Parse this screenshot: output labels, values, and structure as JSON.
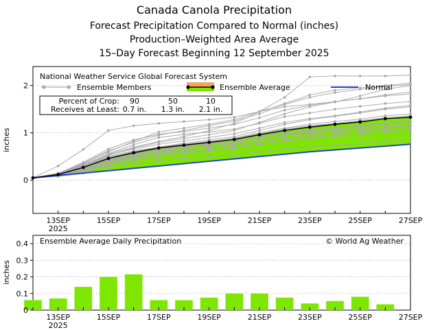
{
  "header": {
    "title": "Canada Canola Precipitation",
    "subtitle1": "Forecast Precipitation Compared to Normal (inches)",
    "subtitle2": "Production–Weighted Area Average",
    "subtitle3": "15–Day Forecast Beginning 12 September 2025"
  },
  "colors": {
    "ensemble_member": "#aaaaaa",
    "ensemble_average_fill": "#7ee600",
    "ensemble_average_line": "#000000",
    "ensemble_average_legend_band": "#f5a35a",
    "normal": "#2040d0",
    "bar": "#7ee600"
  },
  "chart_data": [
    {
      "type": "line",
      "name": "cumulative",
      "source": "National Weather Service Global Forecast System",
      "ylabel": "inches",
      "ylim": [
        -0.7,
        2.4
      ],
      "yticks": [
        0,
        1,
        2
      ],
      "x": [
        12,
        13,
        14,
        15,
        16,
        17,
        18,
        19,
        20,
        21,
        22,
        23,
        24,
        25,
        26,
        27
      ],
      "xlim": [
        12,
        27
      ],
      "xticks": [
        {
          "x": 13,
          "label": "13SEP",
          "sub": "2025"
        },
        {
          "x": 15,
          "label": "15SEP",
          "sub": ""
        },
        {
          "x": 17,
          "label": "17SEP",
          "sub": ""
        },
        {
          "x": 19,
          "label": "19SEP",
          "sub": ""
        },
        {
          "x": 21,
          "label": "21SEP",
          "sub": ""
        },
        {
          "x": 23,
          "label": "23SEP",
          "sub": ""
        },
        {
          "x": 25,
          "label": "25SEP",
          "sub": ""
        },
        {
          "x": 27,
          "label": "27SEP",
          "sub": ""
        }
      ],
      "legend": {
        "members": "Ensemble Members",
        "average": "Ensemble Average",
        "normal": "Normal"
      },
      "crop_table": {
        "row1_label": "Percent of Crop:",
        "row1_values": [
          "90",
          "50",
          "10"
        ],
        "row2_label": "Receives at Least:",
        "row2_values": [
          "0.7 in.",
          "1.3 in.",
          "2.1 in."
        ]
      },
      "ensemble_average": [
        0.05,
        0.12,
        0.27,
        0.46,
        0.58,
        0.68,
        0.74,
        0.8,
        0.86,
        0.96,
        1.05,
        1.12,
        1.18,
        1.23,
        1.3,
        1.33
      ],
      "normal": [
        0.05,
        0.1,
        0.15,
        0.2,
        0.25,
        0.3,
        0.35,
        0.4,
        0.45,
        0.5,
        0.55,
        0.6,
        0.64,
        0.68,
        0.72,
        0.76
      ],
      "ensemble_members": [
        [
          0.05,
          0.14,
          0.38,
          0.66,
          0.85,
          0.97,
          1.03,
          1.1,
          1.18,
          1.32,
          1.48,
          1.58,
          1.66,
          1.72,
          1.8,
          1.86
        ],
        [
          0.05,
          0.1,
          0.22,
          0.42,
          0.52,
          0.6,
          0.66,
          0.71,
          0.76,
          0.86,
          0.95,
          1.02,
          1.08,
          1.12,
          1.18,
          1.22
        ],
        [
          0.05,
          0.12,
          0.3,
          0.5,
          0.62,
          0.7,
          0.76,
          0.82,
          0.89,
          1.0,
          1.1,
          1.18,
          1.24,
          1.29,
          1.36,
          1.4
        ],
        [
          0.05,
          0.09,
          0.18,
          0.32,
          0.42,
          0.5,
          0.56,
          0.62,
          0.67,
          0.75,
          0.83,
          0.9,
          0.95,
          1.0,
          1.05,
          1.08
        ],
        [
          0.05,
          0.13,
          0.32,
          0.56,
          0.75,
          0.9,
          0.97,
          1.02,
          1.08,
          1.2,
          1.34,
          1.42,
          1.5,
          1.56,
          1.62,
          1.66
        ],
        [
          0.05,
          0.11,
          0.24,
          0.4,
          0.5,
          0.57,
          0.62,
          0.67,
          0.72,
          0.8,
          0.88,
          0.95,
          1.0,
          1.04,
          1.1,
          1.13
        ],
        [
          0.05,
          0.3,
          0.65,
          1.05,
          1.15,
          1.2,
          1.24,
          1.28,
          1.33,
          1.45,
          1.55,
          1.6,
          1.66,
          1.72,
          1.78,
          1.82
        ],
        [
          0.05,
          0.08,
          0.15,
          0.28,
          0.36,
          0.42,
          0.46,
          0.5,
          0.54,
          0.6,
          0.66,
          0.7,
          0.74,
          0.78,
          0.82,
          0.86
        ],
        [
          0.05,
          0.14,
          0.35,
          0.6,
          0.82,
          1.02,
          1.1,
          1.18,
          1.28,
          1.45,
          1.62,
          1.8,
          1.9,
          1.95,
          2.0,
          2.05
        ],
        [
          0.05,
          0.12,
          0.28,
          0.48,
          0.6,
          0.7,
          0.78,
          0.85,
          0.92,
          1.05,
          1.18,
          1.28,
          1.35,
          1.42,
          1.5,
          1.55
        ],
        [
          0.05,
          0.1,
          0.2,
          0.35,
          0.45,
          0.52,
          0.58,
          0.63,
          0.68,
          0.76,
          0.82,
          0.88,
          0.92,
          0.96,
          1.0,
          1.03
        ],
        [
          0.05,
          0.13,
          0.3,
          0.52,
          0.68,
          0.8,
          0.88,
          0.96,
          1.05,
          1.22,
          1.4,
          1.55,
          1.65,
          1.78,
          1.92,
          2.0
        ],
        [
          0.05,
          0.11,
          0.26,
          0.44,
          0.56,
          0.65,
          0.72,
          0.8,
          0.88,
          0.98,
          1.08,
          1.15,
          1.2,
          1.26,
          1.32,
          1.36
        ],
        [
          0.05,
          0.09,
          0.2,
          0.36,
          0.48,
          0.58,
          0.66,
          0.72,
          0.78,
          0.86,
          0.94,
          1.0,
          1.04,
          1.08,
          1.12,
          1.15
        ],
        [
          0.05,
          0.15,
          0.36,
          0.62,
          0.8,
          0.95,
          1.05,
          1.15,
          1.25,
          1.4,
          1.6,
          1.75,
          1.85,
          1.92,
          1.98,
          2.02
        ],
        [
          0.05,
          0.12,
          0.27,
          0.46,
          0.59,
          0.69,
          0.75,
          0.82,
          0.88,
          0.98,
          1.06,
          1.13,
          1.19,
          1.24,
          1.3,
          1.34
        ],
        [
          0.05,
          0.1,
          0.21,
          0.38,
          0.5,
          0.6,
          0.7,
          0.78,
          0.84,
          0.92,
          1.0,
          1.06,
          1.1,
          1.15,
          1.2,
          1.24
        ],
        [
          0.05,
          0.14,
          0.33,
          0.55,
          0.7,
          0.82,
          0.92,
          1.05,
          1.2,
          1.45,
          1.75,
          2.18,
          2.2,
          2.2,
          2.2,
          2.22
        ],
        [
          0.05,
          0.11,
          0.25,
          0.43,
          0.55,
          0.64,
          0.7,
          0.76,
          0.82,
          0.9,
          0.98,
          1.04,
          1.09,
          1.14,
          1.2,
          1.25
        ],
        [
          0.05,
          0.13,
          0.31,
          0.53,
          0.66,
          0.76,
          0.83,
          0.9,
          0.98,
          1.1,
          1.22,
          1.3,
          1.36,
          1.44,
          1.52,
          1.58
        ]
      ]
    },
    {
      "type": "bar",
      "name": "daily",
      "title": "Ensemble Average Daily Precipitation",
      "credit": "© World Ag Weather",
      "ylabel": "inches",
      "ylim": [
        0,
        0.45
      ],
      "yticks": [
        0,
        0.1,
        0.2,
        0.3,
        0.4
      ],
      "ytick_labels": [
        "0",
        "0.1",
        "0.2",
        "0.3",
        "0.4"
      ],
      "x": [
        12,
        13,
        14,
        15,
        16,
        17,
        18,
        19,
        20,
        21,
        22,
        23,
        24,
        25,
        26
      ],
      "values": [
        0.06,
        0.07,
        0.14,
        0.2,
        0.215,
        0.06,
        0.06,
        0.075,
        0.1,
        0.1,
        0.075,
        0.04,
        0.055,
        0.08,
        0.035
      ]
    }
  ]
}
